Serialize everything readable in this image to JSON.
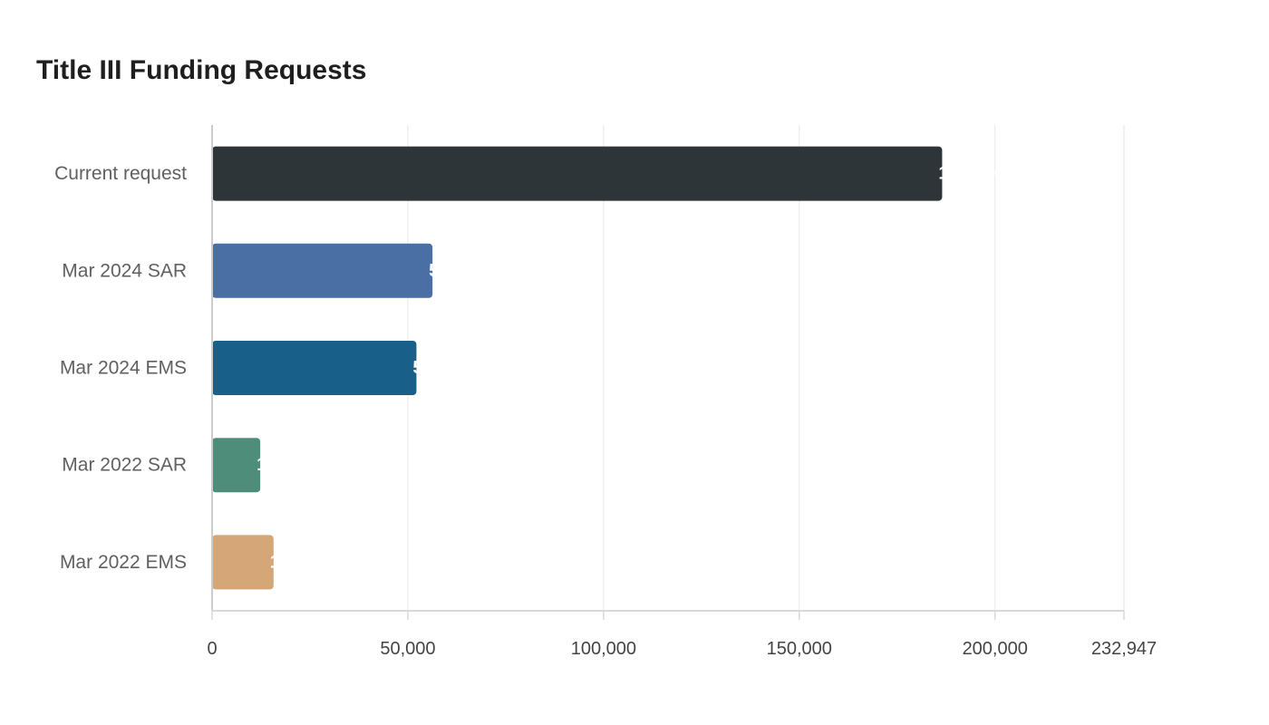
{
  "chart_data": {
    "type": "bar",
    "orientation": "horizontal",
    "title": "Title III Funding Requests",
    "xlabel": "",
    "ylabel": "",
    "categories": [
      "Current request",
      "Mar 2024 SAR",
      "Mar 2024 EMS",
      "Mar 2022 SAR",
      "Mar 2022 EMS"
    ],
    "values": [
      186500,
      56300,
      52200,
      12300,
      15700
    ],
    "colors": [
      "#2e3538",
      "#4a6fa5",
      "#18608a",
      "#4f8d7b",
      "#d4a678"
    ],
    "xlim": [
      0,
      232947
    ],
    "xticks": [
      0,
      50000,
      100000,
      150000,
      200000,
      232947
    ],
    "xtick_labels": [
      "0",
      "50,000",
      "100,000",
      "150,000",
      "200,000",
      "232,947"
    ],
    "data_labels_visible": true,
    "grid": "vertical",
    "legend": "none"
  }
}
